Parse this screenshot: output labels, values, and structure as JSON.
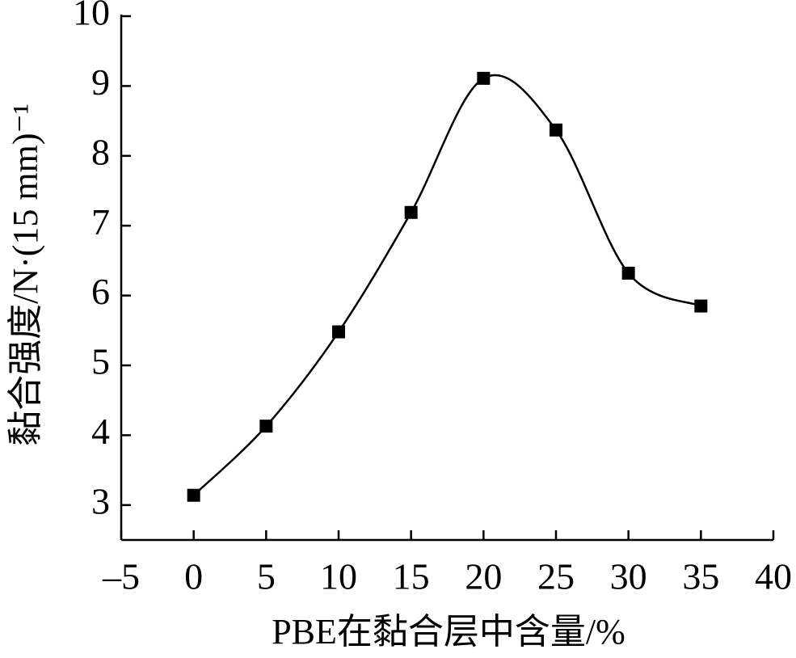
{
  "chart_data": {
    "type": "line",
    "x_label": "PBE在黏合层中含量/%",
    "y_label": "黏合强度/N·(15 mm)⁻¹",
    "x": [
      0,
      5,
      10,
      15,
      20,
      25,
      30,
      35
    ],
    "values": [
      3.14,
      4.13,
      5.48,
      7.19,
      9.11,
      8.37,
      6.32,
      5.85
    ],
    "color": "#000000",
    "smooth": true,
    "xlim": [
      -5,
      40
    ],
    "xticks": [
      {
        "value": -5,
        "label": "–5"
      },
      0,
      5,
      10,
      15,
      20,
      25,
      30,
      35,
      40
    ],
    "ylim": [
      2.5,
      10
    ],
    "yticks": [
      3,
      4,
      5,
      6,
      7,
      8,
      9,
      10
    ]
  }
}
